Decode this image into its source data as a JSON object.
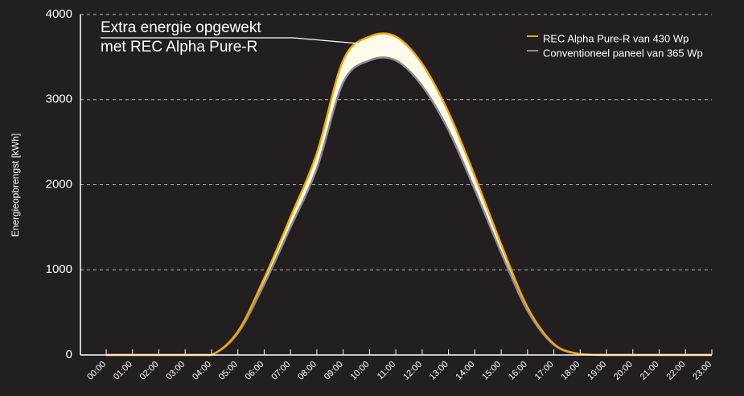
{
  "chart_data": {
    "type": "line",
    "annotation": [
      "Extra energie opgewekt",
      "met REC Alpha Pure-R"
    ],
    "y_label": "Energieopbrengst [kWh]",
    "categories": [
      "00:00",
      "01:00",
      "02:00",
      "03:00",
      "04:00",
      "05:00",
      "06:00",
      "07:00",
      "08:00",
      "09:00",
      "10:00",
      "11:00",
      "12:00",
      "13:00",
      "14:00",
      "15:00",
      "16:00",
      "17:00",
      "18:00",
      "19:00",
      "20:00",
      "21:00",
      "22:00",
      "23:00"
    ],
    "series": [
      {
        "name": "REC Alpha Pure-R van 430 Wp",
        "color": "#f2a900",
        "values": [
          0,
          0,
          0,
          0,
          0,
          275,
          900,
          1620,
          2370,
          3460,
          3740,
          3740,
          3420,
          2850,
          2100,
          1300,
          560,
          130,
          10,
          0,
          0,
          0,
          0,
          0
        ]
      },
      {
        "name": "Conventioneel paneel van 365 Wp",
        "color": "#8c8c8c",
        "values": [
          0,
          0,
          0,
          0,
          0,
          255,
          830,
          1500,
          2190,
          3200,
          3460,
          3460,
          3160,
          2640,
          1940,
          1200,
          520,
          120,
          10,
          0,
          0,
          0,
          0,
          0
        ]
      }
    ],
    "area_color": "#fffbea",
    "ylim": [
      0,
      4000
    ],
    "yticks": [
      0,
      1000,
      2000,
      3000,
      4000
    ],
    "grid": true,
    "legend": "top-right"
  }
}
